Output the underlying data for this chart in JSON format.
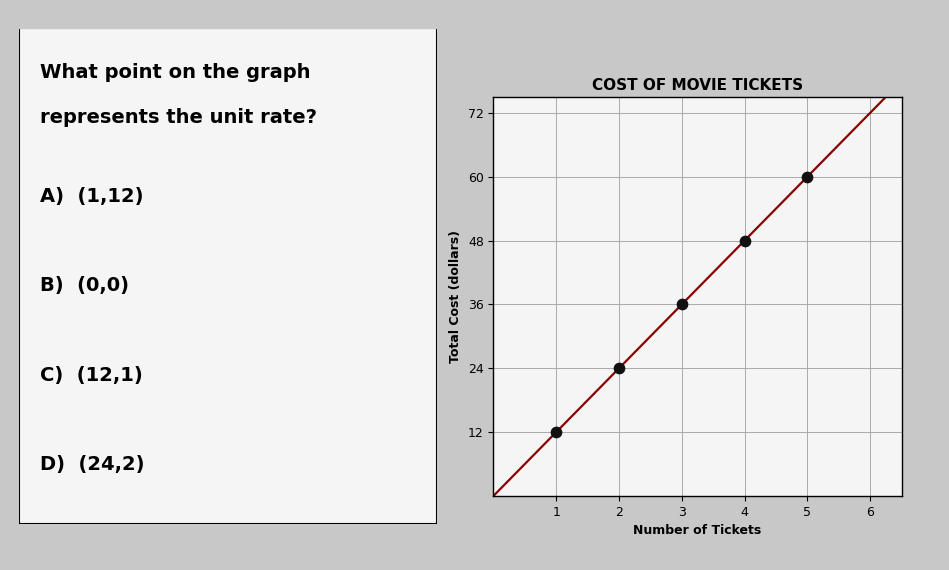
{
  "title": "COST OF MOVIE TICKETS",
  "xlabel": "Number of Tickets",
  "ylabel": "Total Cost (dollars)",
  "x_data": [
    1,
    2,
    3,
    4,
    5
  ],
  "y_data": [
    12,
    24,
    36,
    48,
    60
  ],
  "line_color": "#8B0000",
  "dot_color": "#111111",
  "xlim": [
    0,
    6.5
  ],
  "ylim": [
    0,
    75
  ],
  "xticks": [
    1,
    2,
    3,
    4,
    5,
    6
  ],
  "yticks": [
    12,
    24,
    36,
    48,
    60,
    72
  ],
  "question_text_line1": "What point on the graph",
  "question_text_line2": "represents the unit rate?",
  "choices": [
    "A)  (1,12)",
    "B)  (0,0)",
    "C)  (12,1)",
    "D)  (24,2)"
  ],
  "outer_bg": "#c8c8c8",
  "inner_bg": "#f5f5f5",
  "graph_bg": "#f5f5f5",
  "title_fontsize": 11,
  "axis_label_fontsize": 9,
  "tick_fontsize": 9,
  "question_fontsize": 14,
  "choice_fontsize": 14
}
